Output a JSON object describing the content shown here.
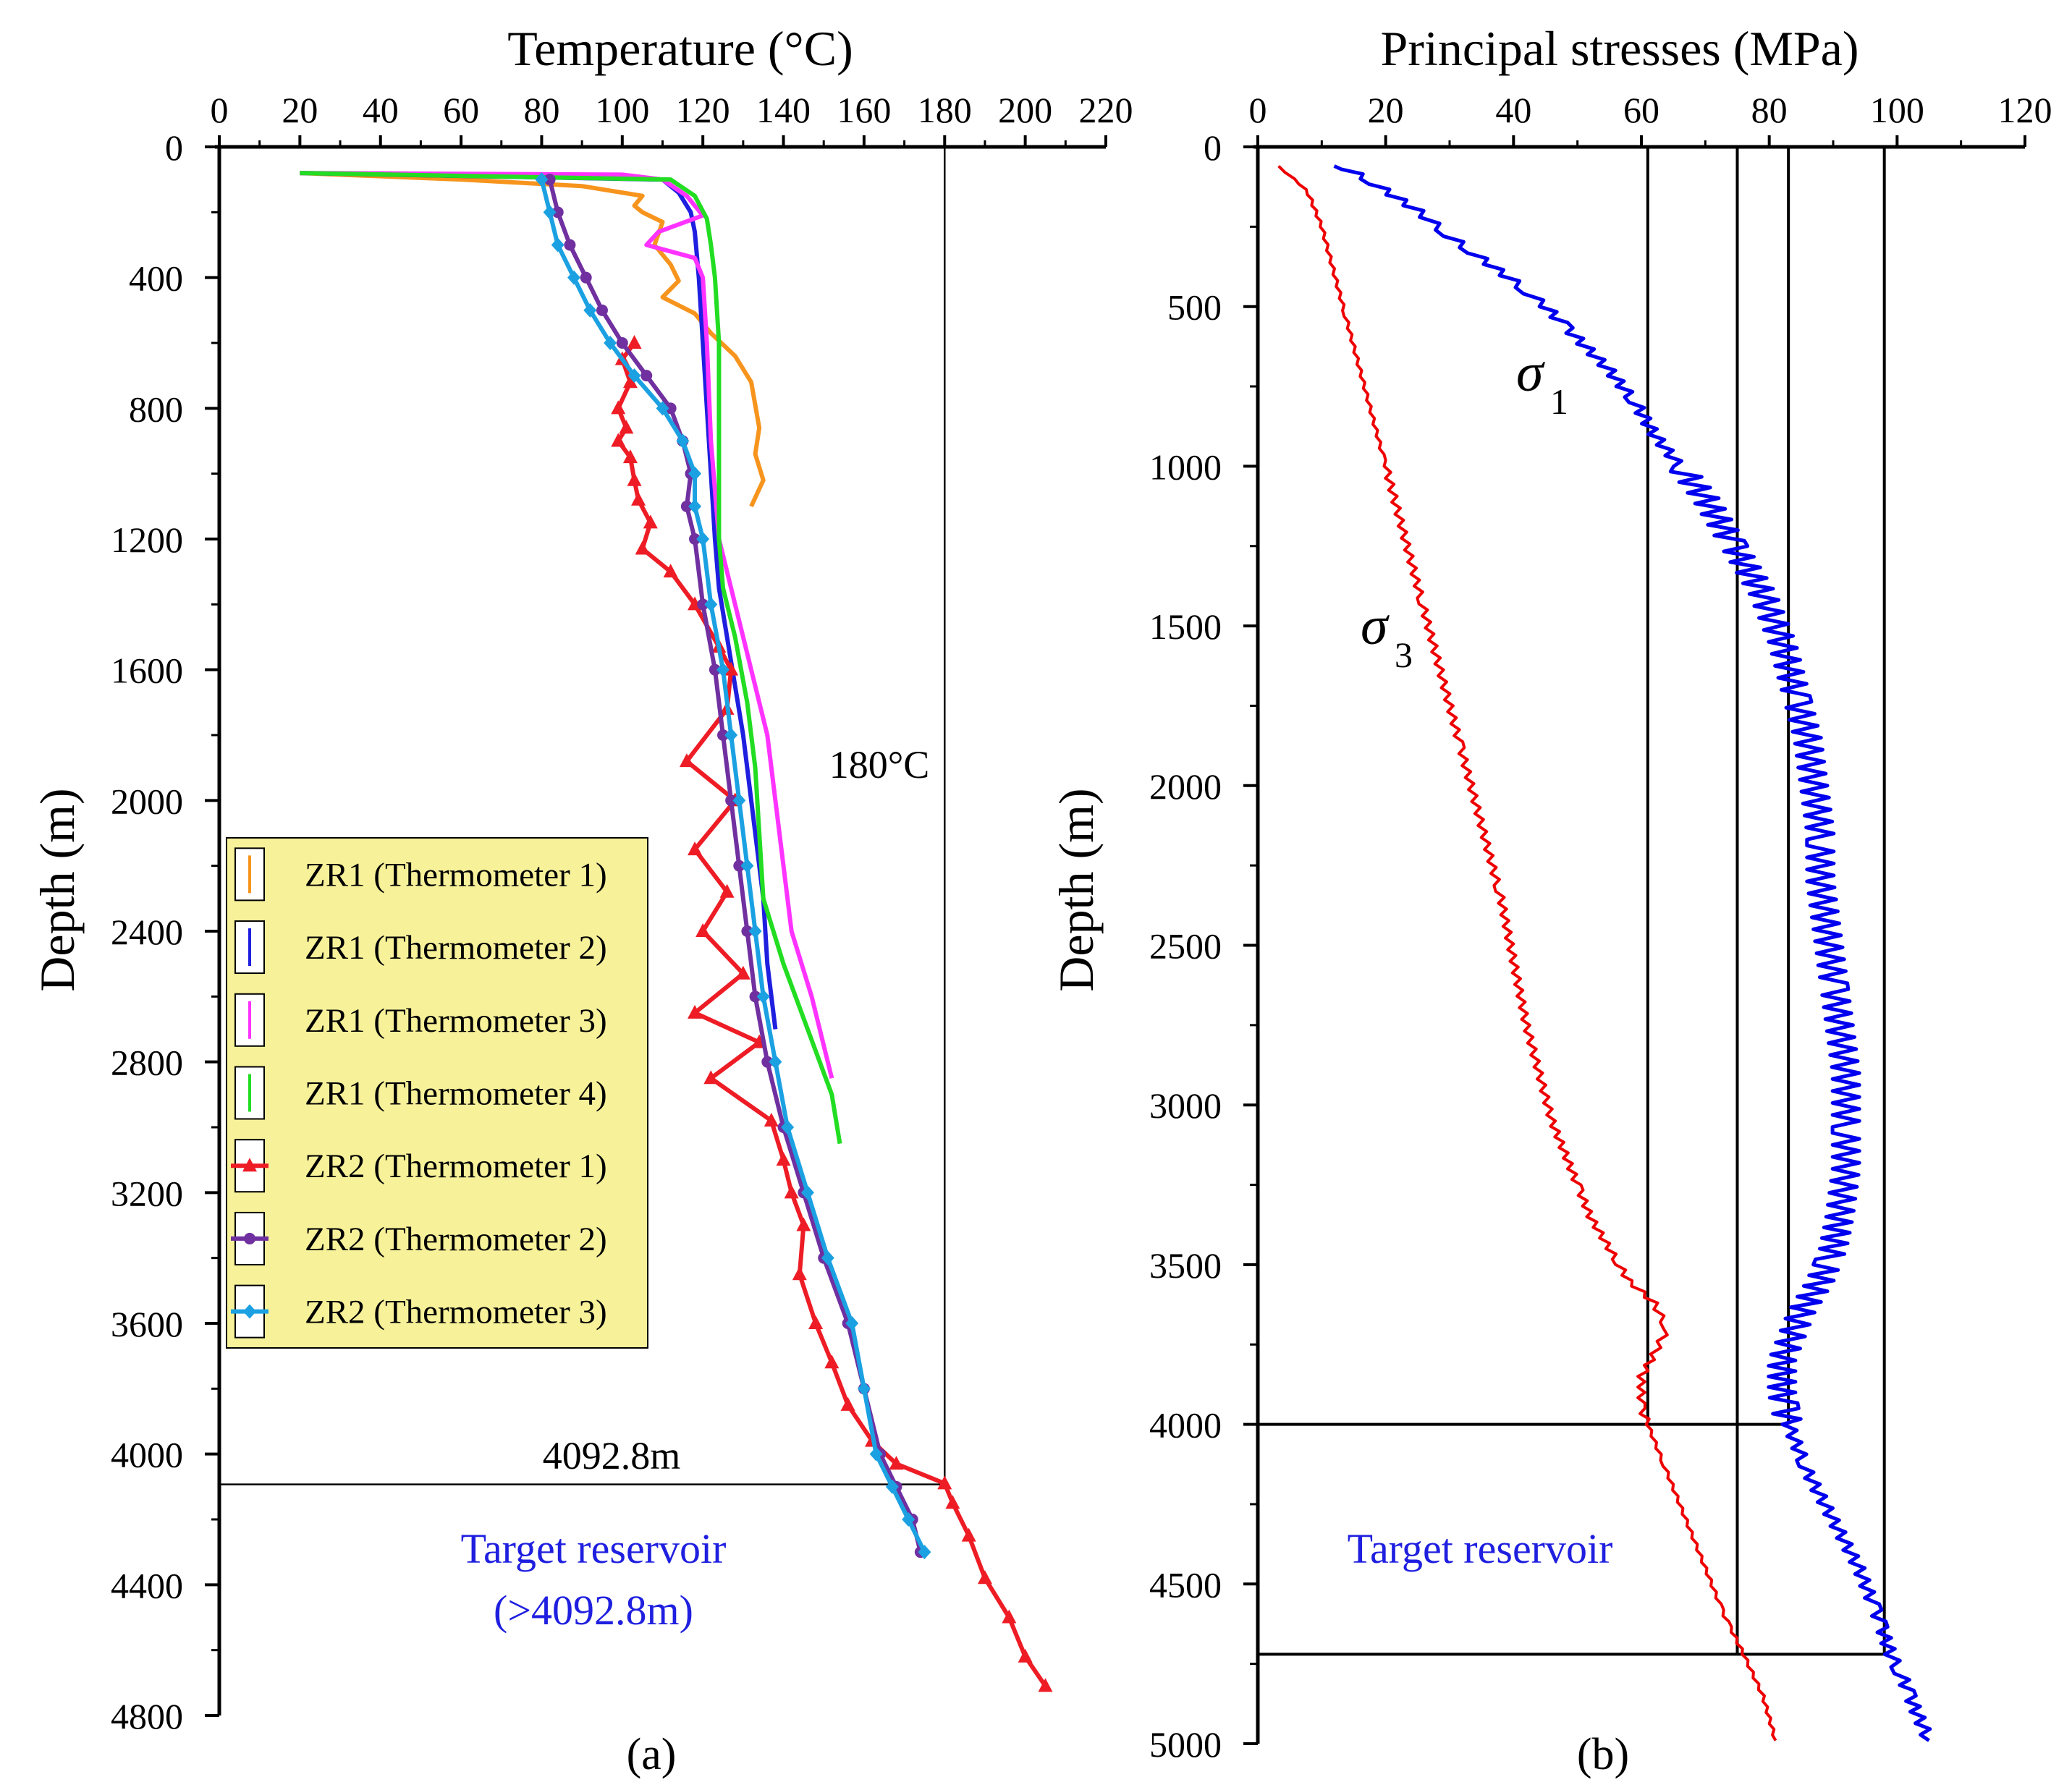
{
  "chart_data": [
    {
      "type": "line",
      "panel_label": "(a)",
      "title": "Temperature (°C)",
      "ylabel": "Depth (m)",
      "x_axis_position": "top",
      "y_inverted": true,
      "xlim": [
        0,
        220
      ],
      "ylim": [
        0,
        4800
      ],
      "x_ticks": [
        "0",
        "20",
        "40",
        "60",
        "80",
        "100",
        "120",
        "140",
        "160",
        "180",
        "200",
        "220"
      ],
      "y_ticks": [
        "0",
        "400",
        "800",
        "1200",
        "1600",
        "2000",
        "2400",
        "2800",
        "3200",
        "3600",
        "4000",
        "4400",
        "4800"
      ],
      "legend_position": "left-middle",
      "annotations": {
        "isotherm_label": "180°C",
        "isotherm_value": 180,
        "depth_label": "4092.8m",
        "depth_value": 4092.8,
        "reservoir_line1": "Target reservoir",
        "reservoir_line2": "(>4092.8m)"
      },
      "series": [
        {
          "name": "ZR1 (Thermometer 1)",
          "color": "#F7941D",
          "marker": "none",
          "x": [
            20,
            60,
            90,
            105,
            103,
            105,
            110,
            108,
            112,
            114,
            110,
            118,
            122,
            128,
            132,
            133,
            134,
            133,
            135,
            132
          ],
          "y": [
            80,
            100,
            120,
            150,
            180,
            200,
            230,
            300,
            360,
            410,
            460,
            510,
            570,
            640,
            720,
            790,
            860,
            940,
            1020,
            1100
          ]
        },
        {
          "name": "ZR1 (Thermometer 2)",
          "color": "#1F1FE0",
          "marker": "none",
          "x": [
            20,
            110,
            114,
            117,
            118,
            119,
            120,
            121,
            122,
            123,
            124,
            126,
            130,
            133,
            135,
            136,
            138
          ],
          "y": [
            80,
            100,
            140,
            200,
            260,
            400,
            600,
            800,
            1000,
            1200,
            1350,
            1500,
            1800,
            2100,
            2300,
            2500,
            2700
          ]
        },
        {
          "name": "ZR1 (Thermometer 3)",
          "color": "#FF33FF",
          "marker": "none",
          "x": [
            20,
            100,
            110,
            116,
            120,
            109,
            106,
            118,
            120,
            121,
            122,
            124,
            128,
            132,
            136,
            138,
            140,
            142,
            147,
            152
          ],
          "y": [
            80,
            85,
            100,
            150,
            210,
            260,
            300,
            340,
            400,
            600,
            900,
            1200,
            1400,
            1600,
            1800,
            2000,
            2200,
            2400,
            2600,
            2850
          ]
        },
        {
          "name": "ZR1 (Thermometer 4)",
          "color": "#22DD22",
          "marker": "none",
          "x": [
            20,
            112,
            118,
            121,
            122,
            123,
            124,
            124,
            124,
            125,
            128,
            131,
            133,
            134,
            135,
            140,
            146,
            152,
            154
          ],
          "y": [
            80,
            100,
            150,
            220,
            300,
            400,
            600,
            900,
            1200,
            1350,
            1500,
            1700,
            1900,
            2100,
            2300,
            2500,
            2700,
            2900,
            3050
          ]
        },
        {
          "name": "ZR2 (Thermometer 1)",
          "color": "#EE1C25",
          "marker": "triangle",
          "x": [
            103,
            100,
            102,
            99,
            101,
            99,
            102,
            103,
            104,
            107,
            105,
            112,
            118,
            124,
            127,
            126,
            116,
            128,
            118,
            126,
            120,
            130,
            118,
            134,
            122,
            137,
            140,
            142,
            145,
            144,
            148,
            152,
            156,
            162,
            168,
            180,
            182,
            186,
            190,
            196,
            200,
            205
          ],
          "y": [
            600,
            650,
            720,
            800,
            860,
            900,
            950,
            1020,
            1080,
            1150,
            1230,
            1300,
            1400,
            1530,
            1600,
            1720,
            1880,
            2000,
            2150,
            2280,
            2400,
            2530,
            2650,
            2740,
            2850,
            2980,
            3100,
            3200,
            3300,
            3450,
            3600,
            3720,
            3850,
            3960,
            4030,
            4090,
            4150,
            4250,
            4380,
            4500,
            4620,
            4710
          ]
        },
        {
          "name": "ZR2 (Thermometer 2)",
          "color": "#7030A0",
          "marker": "circle",
          "x": [
            82,
            84,
            87,
            91,
            95,
            100,
            106,
            112,
            115,
            117,
            116,
            118,
            120,
            123,
            125,
            127,
            129,
            131,
            133,
            136,
            140,
            145,
            150,
            156,
            160,
            164,
            168,
            172,
            174
          ],
          "y": [
            100,
            200,
            300,
            400,
            500,
            600,
            700,
            800,
            900,
            1000,
            1100,
            1200,
            1400,
            1600,
            1800,
            2000,
            2200,
            2400,
            2600,
            2800,
            3000,
            3200,
            3400,
            3600,
            3800,
            4000,
            4100,
            4200,
            4300
          ]
        },
        {
          "name": "ZR2 (Thermometer 3)",
          "color": "#1BA1E2",
          "marker": "diamond",
          "x": [
            80,
            82,
            84,
            88,
            92,
            97,
            103,
            110,
            115,
            118,
            118,
            120,
            122,
            125,
            127,
            129,
            131,
            133,
            135,
            138,
            141,
            146,
            151,
            157,
            160,
            163,
            167,
            171,
            175
          ],
          "y": [
            100,
            200,
            300,
            400,
            500,
            600,
            700,
            800,
            900,
            1000,
            1100,
            1200,
            1400,
            1600,
            1800,
            2000,
            2200,
            2400,
            2600,
            2800,
            3000,
            3200,
            3400,
            3600,
            3800,
            4000,
            4100,
            4200,
            4300
          ]
        }
      ]
    },
    {
      "type": "line",
      "panel_label": "(b)",
      "title": "Principal stresses (MPa)",
      "ylabel": "Depth (m)",
      "x_axis_position": "top",
      "y_inverted": true,
      "xlim": [
        0,
        120
      ],
      "ylim": [
        0,
        5000
      ],
      "x_ticks": [
        "0",
        "20",
        "40",
        "60",
        "80",
        "100",
        "120"
      ],
      "y_ticks": [
        "0",
        "500",
        "1000",
        "1500",
        "2000",
        "2500",
        "3000",
        "3500",
        "4000",
        "4500",
        "5000"
      ],
      "vertical_reference_lines": [
        61,
        75,
        83,
        98
      ],
      "horizontal_reference_lines": [
        4000,
        4720
      ],
      "annotations": {
        "sigma1_symbol": "σ",
        "sigma1_subscript": "1",
        "sigma3_symbol": "σ",
        "sigma3_subscript": "3",
        "reservoir_label": "Target reservoir"
      },
      "series": [
        {
          "name": "σ1",
          "color": "#0000EE",
          "x": [
            11,
            14,
            17,
            21,
            25,
            30,
            35,
            40,
            45,
            50,
            55,
            59,
            62,
            66,
            70,
            73,
            76,
            79,
            82,
            84,
            86,
            87,
            88,
            88,
            89,
            90,
            91,
            92,
            92,
            92,
            91,
            90,
            88,
            85,
            82,
            82,
            83,
            86,
            90,
            94,
            97,
            99,
            101,
            103,
            105
          ],
          "y": [
            60,
            70,
            100,
            150,
            200,
            280,
            350,
            420,
            500,
            600,
            700,
            800,
            900,
            1000,
            1100,
            1200,
            1300,
            1400,
            1550,
            1700,
            1850,
            2000,
            2150,
            2300,
            2450,
            2600,
            2750,
            2900,
            3050,
            3200,
            3350,
            3450,
            3550,
            3650,
            3800,
            3900,
            4000,
            4150,
            4300,
            4450,
            4600,
            4720,
            4800,
            4900,
            4990
          ]
        },
        {
          "name": "σ3",
          "color": "#EE0000",
          "x": [
            3,
            6,
            8,
            10,
            12,
            14,
            16,
            18,
            20,
            22,
            24,
            26,
            28,
            30,
            32,
            34,
            36,
            38,
            40,
            42,
            44,
            46,
            48,
            50,
            52,
            55,
            58,
            62,
            64,
            62,
            60,
            60,
            61,
            64,
            67,
            70,
            73,
            76,
            79,
            81
          ],
          "y": [
            60,
            100,
            150,
            250,
            400,
            550,
            700,
            850,
            1000,
            1150,
            1300,
            1450,
            1600,
            1750,
            1900,
            2050,
            2200,
            2350,
            2550,
            2750,
            2900,
            3050,
            3150,
            3250,
            3350,
            3450,
            3550,
            3620,
            3700,
            3780,
            3850,
            3950,
            4000,
            4150,
            4300,
            4450,
            4600,
            4720,
            4850,
            4990
          ]
        }
      ]
    }
  ]
}
